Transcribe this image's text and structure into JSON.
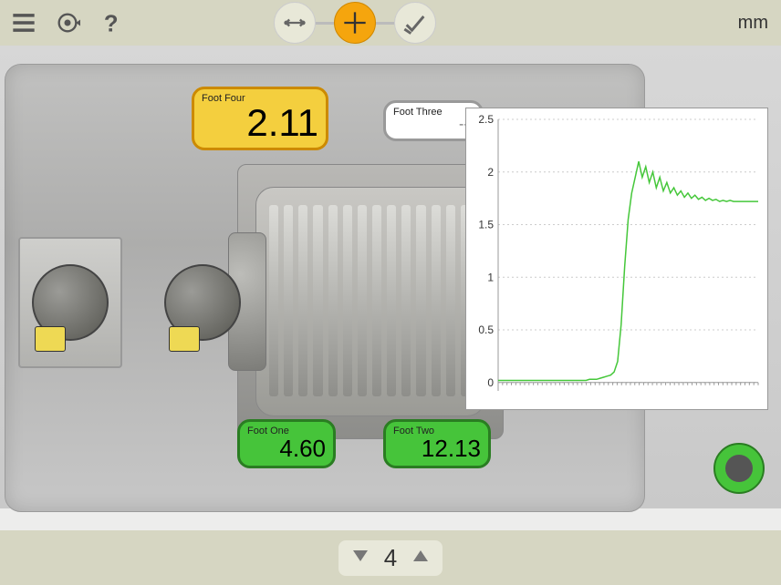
{
  "unit_label": "mm",
  "foot_boxes": {
    "foot4": {
      "label": "Foot Four",
      "value": "2.11",
      "color": "yellow"
    },
    "foot3": {
      "label": "Foot Three",
      "value": "---",
      "color": "white"
    },
    "foot1": {
      "label": "Foot One",
      "value": "4.60",
      "color": "green"
    },
    "foot2": {
      "label": "Foot Two",
      "value": "12.13",
      "color": "green"
    }
  },
  "stepper": {
    "count": "4"
  },
  "chart": {
    "type": "line",
    "ylim": [
      -0.08,
      2.5
    ],
    "ytick_step": 0.5,
    "yticks": [
      "0",
      "0.5",
      "1",
      "1.5",
      "2",
      "2.5"
    ],
    "line_color": "#45c73a",
    "grid_color": "#cccccc",
    "axis_color": "#999999",
    "background_color": "#ffffff",
    "tick_font_size": 12,
    "line_width": 1.5,
    "series": [
      0.02,
      0.02,
      0.02,
      0.02,
      0.02,
      0.02,
      0.02,
      0.02,
      0.02,
      0.02,
      0.02,
      0.02,
      0.02,
      0.02,
      0.02,
      0.02,
      0.02,
      0.02,
      0.02,
      0.02,
      0.02,
      0.02,
      0.02,
      0.02,
      0.02,
      0.02,
      0.03,
      0.03,
      0.03,
      0.04,
      0.05,
      0.06,
      0.07,
      0.1,
      0.2,
      0.55,
      1.1,
      1.55,
      1.8,
      1.95,
      2.1,
      1.95,
      2.05,
      1.9,
      2.0,
      1.85,
      1.95,
      1.82,
      1.9,
      1.8,
      1.85,
      1.78,
      1.82,
      1.76,
      1.8,
      1.75,
      1.78,
      1.74,
      1.76,
      1.73,
      1.75,
      1.73,
      1.74,
      1.72,
      1.73,
      1.72,
      1.73,
      1.72,
      1.72,
      1.72,
      1.72,
      1.72,
      1.72,
      1.72,
      1.72
    ]
  },
  "colors": {
    "topbar_bg": "#d6d6c2",
    "active_wizard": "#f5a50d",
    "machine_bg": "#c1c1c0",
    "yellow_box": "#f4cf3e",
    "green_box": "#46c43a",
    "record_fill": "#555555"
  }
}
